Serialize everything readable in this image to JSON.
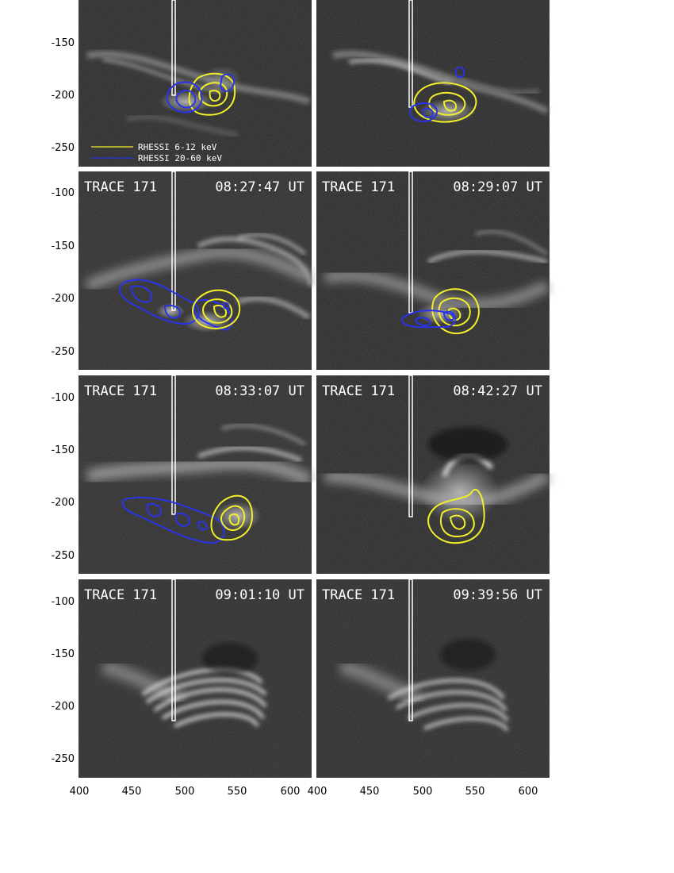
{
  "figure": {
    "x_ticks": [
      "400",
      "450",
      "500",
      "550",
      "600"
    ],
    "y_ticks_top": [
      "-150",
      "-200",
      "-250"
    ],
    "y_ticks": [
      "-100",
      "-150",
      "-200",
      "-250"
    ],
    "legend": [
      {
        "label": "RHESSI 6-12 keV",
        "color": "#f2f02a"
      },
      {
        "label": "RHESSI 20-60 keV",
        "color": "#2a33e8"
      }
    ],
    "instrument_label": "TRACE 171",
    "rows": [
      {
        "left_time": "",
        "right_time": ""
      },
      {
        "left_time": "08:27:47 UT",
        "right_time": "08:29:07 UT"
      },
      {
        "left_time": "08:33:07 UT",
        "right_time": "08:42:27 UT"
      },
      {
        "left_time": "09:01:10 UT",
        "right_time": "09:39:56 UT"
      }
    ],
    "colors": {
      "low_energy": "#f2f02a",
      "high_energy": "#2a33e8",
      "slit": "#ffffff"
    }
  },
  "chart_data": {
    "type": "image-grid",
    "panels": [
      {
        "time": "",
        "contours": [
          "6-12 keV",
          "20-60 keV"
        ]
      },
      {
        "time": "",
        "contours": [
          "6-12 keV",
          "20-60 keV"
        ]
      },
      {
        "time": "08:27:47 UT",
        "contours": [
          "6-12 keV",
          "20-60 keV"
        ]
      },
      {
        "time": "08:29:07 UT",
        "contours": [
          "6-12 keV",
          "20-60 keV"
        ]
      },
      {
        "time": "08:33:07 UT",
        "contours": [
          "6-12 keV",
          "20-60 keV"
        ]
      },
      {
        "time": "08:42:27 UT",
        "contours": [
          "6-12 keV"
        ]
      },
      {
        "time": "09:01:10 UT",
        "contours": []
      },
      {
        "time": "09:39:56 UT",
        "contours": []
      }
    ],
    "x_range": [
      400,
      620
    ],
    "y_range": [
      -275,
      -75
    ]
  }
}
